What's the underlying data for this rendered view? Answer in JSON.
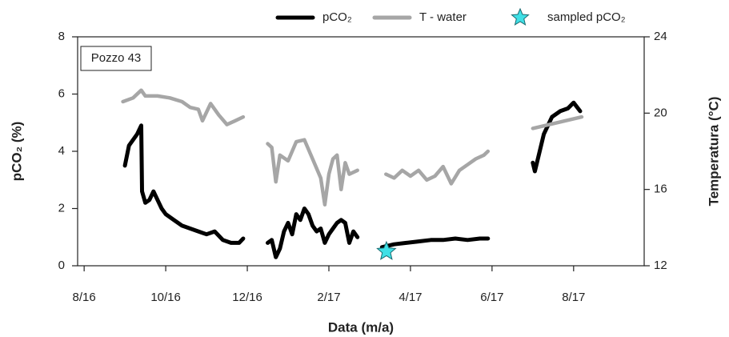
{
  "chart_data": {
    "type": "line",
    "annotation": "Pozzo 43",
    "x_label": "Data (m/a)",
    "y_label": "pCO₂ (%)",
    "y2_label": "Temperatura (°C)",
    "xlim": [
      -0.16,
      13.73
    ],
    "xticks": [
      {
        "value": 0,
        "label": "8/16"
      },
      {
        "value": 2,
        "label": "10/16"
      },
      {
        "value": 4,
        "label": "12/16"
      },
      {
        "value": 6,
        "label": "2/17"
      },
      {
        "value": 8,
        "label": "4/17"
      },
      {
        "value": 10,
        "label": "6/17"
      },
      {
        "value": 12,
        "label": "8/17"
      }
    ],
    "ylim": [
      0,
      8
    ],
    "yticks": [
      0,
      2,
      4,
      6,
      8
    ],
    "y2lim": [
      12,
      24
    ],
    "y2ticks": [
      12,
      16,
      20,
      24
    ],
    "legend": "top",
    "series": [
      {
        "name": "pCO₂",
        "type": "line",
        "color": "#000000",
        "x": [
          1.0,
          1.1,
          1.2,
          1.3,
          1.4,
          1.42,
          1.5,
          1.6,
          1.7,
          1.8,
          1.9,
          2.0,
          2.2,
          2.4,
          2.6,
          2.8,
          3.0,
          3.2,
          3.4,
          3.6,
          3.8,
          3.9,
          null,
          4.5,
          4.6,
          4.7,
          4.8,
          4.9,
          5.0,
          5.1,
          5.2,
          5.3,
          5.4,
          5.5,
          5.6,
          5.7,
          5.8,
          5.9,
          6.0,
          6.1,
          6.2,
          6.3,
          6.4,
          6.5,
          6.6,
          6.7,
          null,
          7.3,
          7.6,
          7.9,
          8.2,
          8.5,
          8.8,
          9.1,
          9.4,
          9.7,
          9.9,
          null,
          11.0,
          11.05,
          11.27,
          11.47,
          11.67,
          11.86,
          12.0,
          12.16
        ],
        "values": [
          3.5,
          4.2,
          4.4,
          4.6,
          4.9,
          2.6,
          2.2,
          2.3,
          2.6,
          2.3,
          2.0,
          1.8,
          1.6,
          1.4,
          1.3,
          1.2,
          1.1,
          1.2,
          0.9,
          0.8,
          0.8,
          0.95,
          null,
          0.8,
          0.9,
          0.3,
          0.6,
          1.2,
          1.5,
          1.1,
          1.8,
          1.6,
          2.0,
          1.8,
          1.4,
          1.2,
          1.3,
          0.8,
          1.1,
          1.3,
          1.5,
          1.6,
          1.5,
          0.8,
          1.2,
          1.0,
          null,
          0.65,
          0.75,
          0.8,
          0.85,
          0.9,
          0.9,
          0.95,
          0.9,
          0.95,
          0.95,
          null,
          3.6,
          3.3,
          4.6,
          5.2,
          5.4,
          5.5,
          5.7,
          5.4
        ]
      },
      {
        "name": "T - water",
        "type": "line",
        "axis": "y2",
        "color": "#a6a6a6",
        "x": [
          0.95,
          1.2,
          1.4,
          1.5,
          1.8,
          2.1,
          2.4,
          2.6,
          2.8,
          2.9,
          3.1,
          3.3,
          3.5,
          3.7,
          3.9,
          null,
          4.5,
          4.6,
          4.7,
          4.8,
          5.0,
          5.2,
          5.4,
          5.6,
          5.8,
          5.9,
          6.0,
          6.1,
          6.2,
          6.3,
          6.4,
          6.5,
          6.7,
          null,
          7.4,
          7.6,
          7.8,
          8.0,
          8.2,
          8.4,
          8.6,
          8.8,
          9.0,
          9.2,
          9.4,
          9.6,
          9.8,
          9.9,
          null,
          11.0,
          12.2
        ],
        "values": [
          20.6,
          20.8,
          21.2,
          20.9,
          20.9,
          20.8,
          20.6,
          20.3,
          20.2,
          19.6,
          20.5,
          19.9,
          19.4,
          19.6,
          19.8,
          null,
          18.4,
          18.2,
          16.4,
          17.8,
          17.5,
          18.5,
          18.6,
          17.6,
          16.6,
          15.2,
          16.8,
          17.6,
          17.8,
          16.0,
          17.4,
          16.8,
          17.0,
          null,
          16.8,
          16.6,
          17.0,
          16.7,
          17.0,
          16.5,
          16.7,
          17.2,
          16.3,
          17.0,
          17.3,
          17.6,
          17.8,
          18.0,
          null,
          19.2,
          19.8
        ]
      },
      {
        "name": "sampled pCO₂",
        "type": "scatter",
        "color": "#3fe0e6",
        "x": [
          7.41
        ],
        "values": [
          0.5
        ]
      }
    ]
  }
}
